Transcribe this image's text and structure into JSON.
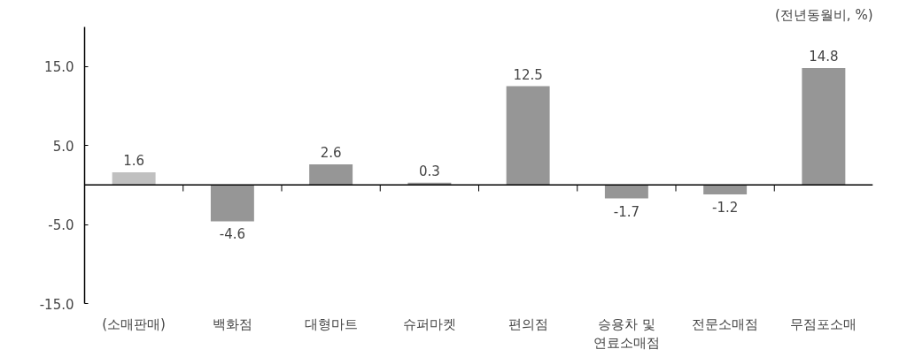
{
  "chart_data": {
    "type": "bar",
    "categories": [
      "(소매판매)",
      "백화점",
      "대형마트",
      "슈퍼마켓",
      "편의점",
      "승용차 및\n연료소매점",
      "전문소매점",
      "무점포소매"
    ],
    "values": [
      1.6,
      -4.6,
      2.6,
      0.3,
      12.5,
      -1.7,
      -1.2,
      14.8
    ],
    "colors": [
      "#c0c0c0",
      "#969696",
      "#969696",
      "#969696",
      "#969696",
      "#969696",
      "#969696",
      "#969696"
    ],
    "ylim": [
      -15,
      20
    ],
    "yticks": [
      {
        "value": 15,
        "label": "15.0"
      },
      {
        "value": 5,
        "label": "5.0"
      },
      {
        "value": -5,
        "label": "-5.0"
      },
      {
        "value": -15,
        "label": "-15.0"
      }
    ],
    "data_labels": true,
    "grid": false,
    "annotations": [
      "(전년동월비, %)"
    ]
  }
}
